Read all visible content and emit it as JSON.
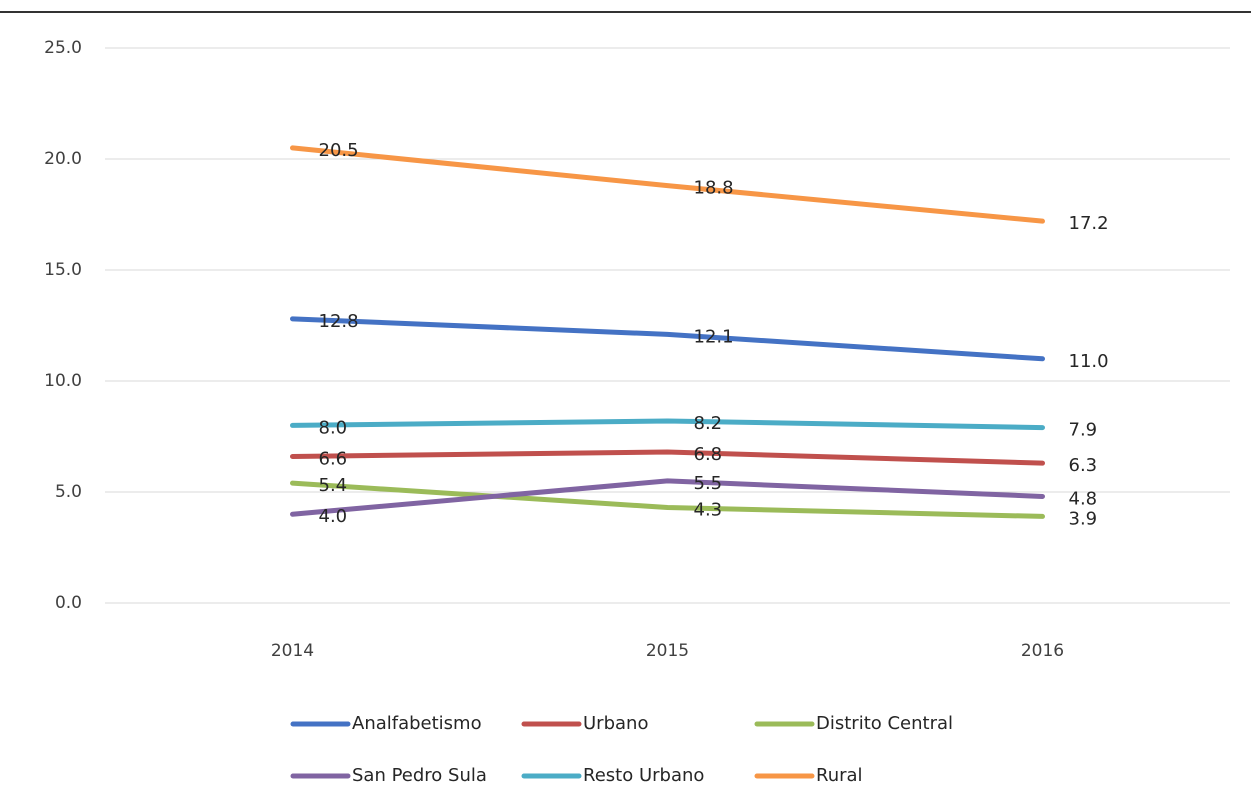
{
  "chart_data": {
    "type": "line",
    "categories": [
      "2014",
      "2015",
      "2016"
    ],
    "series": [
      {
        "name": "Analfabetismo",
        "color": "#4472c4",
        "values": [
          12.8,
          12.1,
          11
        ],
        "value_labels": [
          "12.8",
          "12.1",
          "11.0"
        ]
      },
      {
        "name": "Urbano",
        "color": "#c0504d",
        "values": [
          6.6,
          6.8,
          6.3
        ],
        "value_labels": [
          "6.6",
          "6.8",
          "6.3"
        ]
      },
      {
        "name": "Distrito Central",
        "color": "#9bbb59",
        "values": [
          5.4,
          4.3,
          3.9
        ],
        "value_labels": [
          "5.4",
          "4.3",
          "3.9"
        ]
      },
      {
        "name": "San Pedro Sula",
        "color": "#8064a2",
        "values": [
          4,
          5.5,
          4.8
        ],
        "value_labels": [
          "4.0",
          "5.5",
          "4.8"
        ]
      },
      {
        "name": "Resto Urbano",
        "color": "#4bacc6",
        "values": [
          8,
          8.2,
          7.9
        ],
        "value_labels": [
          "8.0",
          "8.2",
          "7.9"
        ]
      },
      {
        "name": "Rural",
        "color": "#f79646",
        "values": [
          20.5,
          18.8,
          17.2
        ],
        "value_labels": [
          "20.5",
          "18.8",
          "17.2"
        ]
      }
    ],
    "ylim": [
      0,
      25
    ],
    "yticks": [
      {
        "value": 0,
        "label": "0.0"
      },
      {
        "value": 5,
        "label": "5.0"
      },
      {
        "value": 10,
        "label": "10.0"
      },
      {
        "value": 15,
        "label": "15.0"
      },
      {
        "value": 20,
        "label": "20.0"
      },
      {
        "value": 25,
        "label": "25.0"
      }
    ],
    "grid": true,
    "legend": "bottom"
  }
}
